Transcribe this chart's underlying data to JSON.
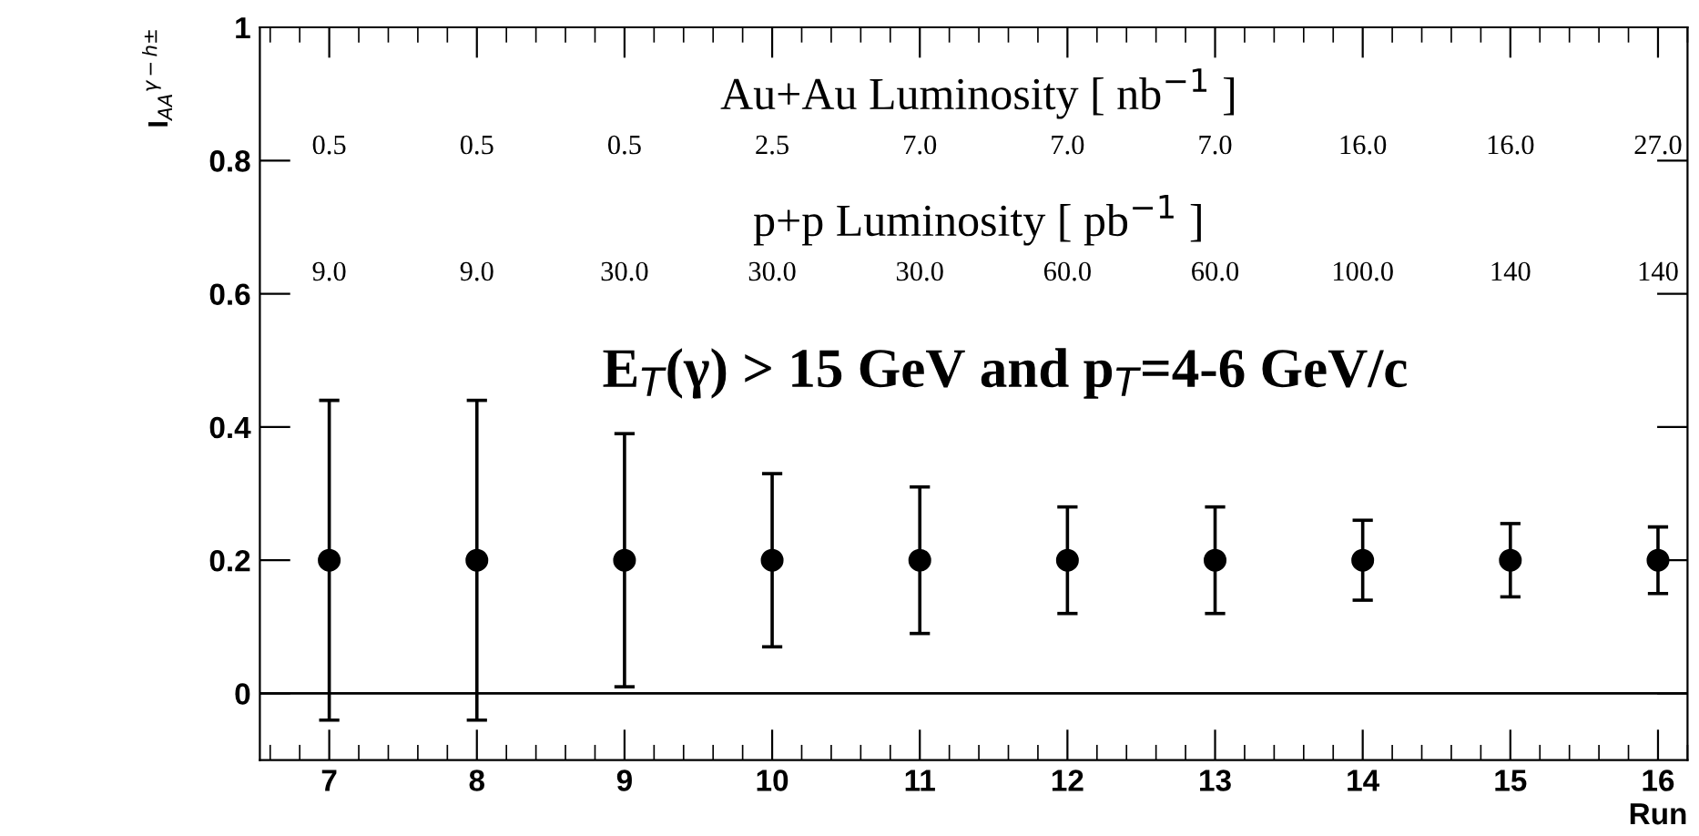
{
  "chart_data": {
    "type": "scatter",
    "xlabel": "Run",
    "ylabel": "I$_{AA}$$^{γ−h±}$",
    "x": [
      7,
      8,
      9,
      10,
      11,
      12,
      13,
      14,
      15,
      16
    ],
    "values": [
      0.2,
      0.2,
      0.2,
      0.2,
      0.2,
      0.2,
      0.2,
      0.2,
      0.2,
      0.2
    ],
    "errors": [
      0.24,
      0.24,
      0.19,
      0.13,
      0.11,
      0.08,
      0.08,
      0.06,
      0.055,
      0.05
    ],
    "color": "#000000",
    "marker": "circle",
    "xlim": [
      6.53,
      16.2
    ],
    "xticks": [
      7,
      8,
      9,
      10,
      11,
      12,
      13,
      14,
      15,
      16
    ],
    "ylim": [
      -0.1,
      1
    ],
    "yticks": [
      0,
      0.2,
      0.4,
      0.6,
      0.8,
      1
    ],
    "ref_lines": [
      {
        "axis": "y",
        "value": 0,
        "color": "#000000"
      }
    ],
    "grid": false,
    "annotations": [
      "Au+Au Luminosity [ nb$^{−1}$ ]",
      "0.5",
      "0.5",
      "0.5",
      "2.5",
      "7.0",
      "7.0",
      "7.0",
      "16.0",
      "16.0",
      "27.0",
      "p+p Luminosity [ pb$^{−1}$ ]",
      "9.0",
      "9.0",
      "30.0",
      "30.0",
      "30.0",
      "60.0",
      "60.0",
      "100.0",
      "140",
      "140",
      "E$_{T}$(γ) > 15 GeV and p$_{T}$=4-6 GeV/c"
    ]
  }
}
